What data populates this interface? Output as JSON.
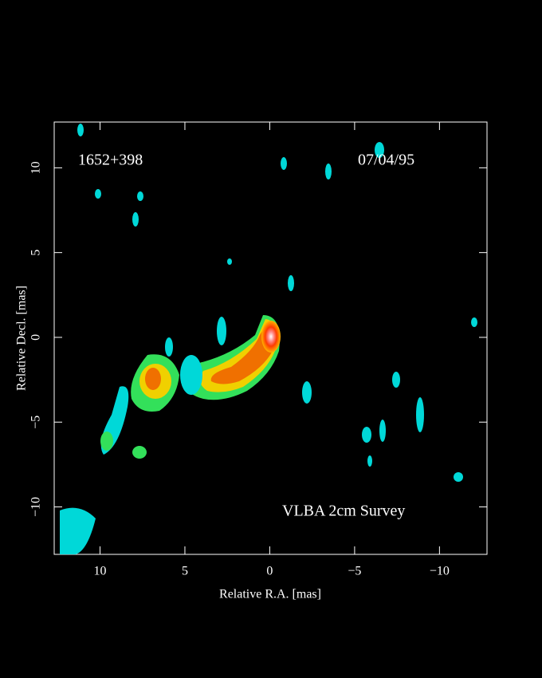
{
  "chart_data": {
    "type": "image",
    "source": "1652+398",
    "date": "07/04/95",
    "survey": "VLBA 2cm Survey",
    "x_label": "Relative R.A. [mas]",
    "y_label": "Relative Decl. [mas]",
    "xlim": [
      12.7,
      -12.8
    ],
    "ylim": [
      -12.8,
      12.7
    ],
    "xticks": [
      10,
      5,
      0,
      {
        "value": -5,
        "label": "−5"
      },
      {
        "value": -10,
        "label": "−10"
      }
    ],
    "yticks": [
      {
        "value": -10,
        "label": "−10"
      },
      {
        "value": -5,
        "label": "−5"
      },
      0,
      5,
      10
    ]
  }
}
